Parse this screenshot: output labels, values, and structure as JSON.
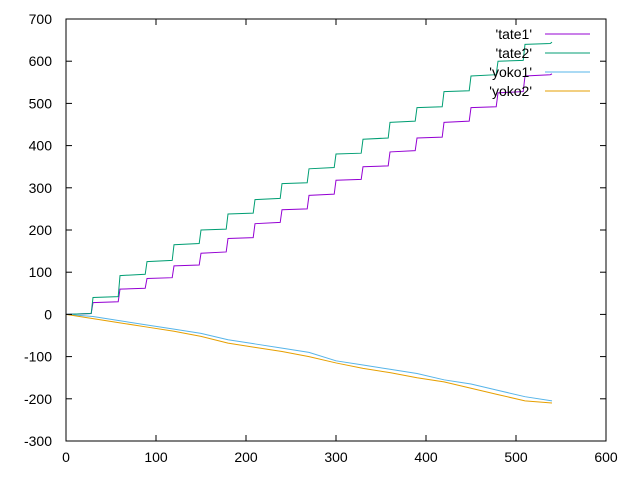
{
  "chart_data": {
    "type": "line",
    "title": "",
    "xlabel": "",
    "ylabel": "",
    "xlim": [
      0,
      600
    ],
    "ylim": [
      -300,
      700
    ],
    "x_ticks": [
      0,
      100,
      200,
      300,
      400,
      500,
      600
    ],
    "y_ticks": [
      -300,
      -200,
      -100,
      0,
      100,
      200,
      300,
      400,
      500,
      600,
      700
    ],
    "x_tick_labels": [
      "0",
      "100",
      "200",
      "300",
      "400",
      "500",
      "600"
    ],
    "y_tick_labels": [
      "-300",
      "-200",
      "-100",
      "0",
      "100",
      "200",
      "300",
      "400",
      "500",
      "600",
      "700"
    ],
    "grid": false,
    "legend_position": "top-right",
    "series": [
      {
        "name": "'tate1'",
        "color": "#9400d3",
        "x": [
          0,
          28,
          30,
          58,
          60,
          88,
          90,
          118,
          120,
          148,
          150,
          178,
          180,
          208,
          210,
          238,
          240,
          268,
          270,
          298,
          300,
          328,
          330,
          358,
          360,
          388,
          390,
          418,
          420,
          448,
          450,
          478,
          480,
          508,
          510,
          538,
          540
        ],
        "y": [
          0,
          2,
          28,
          30,
          60,
          62,
          85,
          87,
          115,
          117,
          145,
          148,
          180,
          182,
          215,
          218,
          248,
          250,
          282,
          285,
          318,
          320,
          350,
          352,
          385,
          388,
          418,
          420,
          455,
          458,
          490,
          492,
          525,
          528,
          565,
          568,
          570
        ]
      },
      {
        "name": "'tate2'",
        "color": "#009e73",
        "x": [
          0,
          28,
          30,
          58,
          60,
          88,
          90,
          118,
          120,
          148,
          150,
          178,
          180,
          208,
          210,
          238,
          240,
          268,
          270,
          298,
          300,
          328,
          330,
          358,
          360,
          388,
          390,
          418,
          420,
          448,
          450,
          478,
          480,
          508,
          510,
          538,
          540
        ],
        "y": [
          0,
          2,
          40,
          42,
          92,
          95,
          125,
          128,
          165,
          168,
          200,
          202,
          238,
          240,
          272,
          275,
          310,
          312,
          345,
          348,
          380,
          382,
          415,
          418,
          455,
          458,
          490,
          492,
          528,
          530,
          565,
          568,
          600,
          602,
          640,
          642,
          645
        ]
      },
      {
        "name": "'yoko1'",
        "color": "#56b4e9",
        "x": [
          0,
          30,
          60,
          90,
          120,
          150,
          180,
          210,
          240,
          270,
          300,
          330,
          360,
          390,
          420,
          450,
          480,
          510,
          540
        ],
        "y": [
          0,
          -5,
          -15,
          -25,
          -35,
          -45,
          -60,
          -70,
          -80,
          -90,
          -110,
          -120,
          -130,
          -140,
          -155,
          -165,
          -180,
          -195,
          -205
        ]
      },
      {
        "name": "'yoko2'",
        "color": "#e69f00",
        "x": [
          0,
          30,
          60,
          90,
          120,
          150,
          180,
          210,
          240,
          270,
          300,
          330,
          360,
          390,
          420,
          450,
          480,
          510,
          540
        ],
        "y": [
          0,
          -10,
          -20,
          -30,
          -40,
          -52,
          -68,
          -78,
          -88,
          -100,
          -115,
          -128,
          -138,
          -150,
          -160,
          -175,
          -190,
          -205,
          -210
        ]
      }
    ]
  }
}
